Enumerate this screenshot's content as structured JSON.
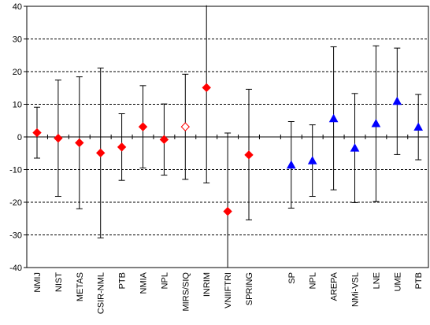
{
  "chart_data": {
    "type": "scatter",
    "ylim": [
      -40,
      40
    ],
    "yticks": [
      -40,
      -30,
      -20,
      -10,
      0,
      10,
      20,
      30,
      40
    ],
    "grid": "horizontal-dashed",
    "title": "",
    "xlabel": "",
    "ylabel": "",
    "categories": [
      "NMIJ",
      "NIST",
      "METAS",
      "CSIR-NML",
      "PTB",
      "NMIA",
      "NPL",
      "MIRS/SIQ",
      "INRIM",
      "VNIIFTRI",
      "SPRING",
      "",
      "SP",
      "NPL",
      "AREPA",
      "NMi-VSL",
      "LNE",
      "UME",
      "PTB"
    ],
    "series": [
      {
        "marker": "diamond",
        "color": "#ff0000",
        "points": [
          {
            "category": "NMIJ",
            "index": 0,
            "y": 1.3,
            "low": -6.5,
            "high": 9.1,
            "filled": true
          },
          {
            "category": "NIST",
            "index": 1,
            "y": -0.4,
            "low": -18.2,
            "high": 17.4,
            "filled": true
          },
          {
            "category": "METAS",
            "index": 2,
            "y": -1.8,
            "low": -22.0,
            "high": 18.4,
            "filled": true
          },
          {
            "category": "CSIR-NML",
            "index": 3,
            "y": -4.9,
            "low": -30.9,
            "high": 21.1,
            "filled": true
          },
          {
            "category": "PTB",
            "index": 4,
            "y": -3.1,
            "low": -13.3,
            "high": 7.1,
            "filled": true
          },
          {
            "category": "NMIA",
            "index": 5,
            "y": 3.1,
            "low": -9.5,
            "high": 15.7,
            "filled": true
          },
          {
            "category": "NPL",
            "index": 6,
            "y": -0.8,
            "low": -11.7,
            "high": 10.1,
            "filled": true
          },
          {
            "category": "MIRS/SIQ",
            "index": 7,
            "y": 3.1,
            "low": -13.0,
            "high": 19.2,
            "filled": false
          },
          {
            "category": "INRIM",
            "index": 8,
            "y": 15.1,
            "low": -14.1,
            "high": 41.0,
            "filled": true
          },
          {
            "category": "VNIIFTRI",
            "index": 9,
            "y": -22.8,
            "low": -40.0,
            "high": 1.2,
            "filled": true
          },
          {
            "category": "SPRING",
            "index": 10,
            "y": -5.5,
            "low": -25.4,
            "high": 14.6,
            "filled": true
          }
        ]
      },
      {
        "marker": "triangle",
        "color": "#0000ff",
        "points": [
          {
            "category": "SP",
            "index": 12,
            "y": -8.6,
            "low": -21.8,
            "high": 4.7,
            "filled": true
          },
          {
            "category": "NPL",
            "index": 13,
            "y": -7.3,
            "low": -18.2,
            "high": 3.7,
            "filled": true
          },
          {
            "category": "AREPA",
            "index": 14,
            "y": 5.6,
            "low": -16.2,
            "high": 27.6,
            "filled": true
          },
          {
            "category": "NMi-VSL",
            "index": 15,
            "y": -3.4,
            "low": -20.1,
            "high": 13.3,
            "filled": true
          },
          {
            "category": "LNE",
            "index": 16,
            "y": 4.1,
            "low": -19.8,
            "high": 27.9,
            "filled": true
          },
          {
            "category": "UME",
            "index": 17,
            "y": 10.9,
            "low": -5.4,
            "high": 27.2,
            "filled": true
          },
          {
            "category": "PTB",
            "index": 18,
            "y": 3.0,
            "low": -7.0,
            "high": 13.0,
            "filled": true
          }
        ]
      }
    ]
  }
}
